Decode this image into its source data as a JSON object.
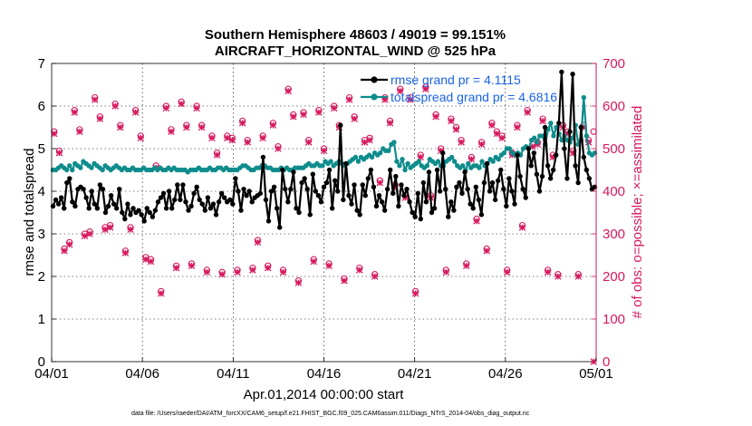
{
  "chart_data": {
    "type": "line",
    "title": "Southern Hemisphere 48603 / 49019 = 99.151%",
    "subtitle": "AIRCRAFT_HORIZONTAL_WIND @ 525 hPa",
    "xlabel": "Apr.01,2014 00:00:00 start",
    "ylabel_left": "rmse and totalspread",
    "ylabel_right": "# of obs: o=possible; ×=assimilated",
    "xlim": [
      0,
      30
    ],
    "ylim_left": [
      0,
      7
    ],
    "ylim_right": [
      0,
      700
    ],
    "x_ticks": [
      0,
      5,
      10,
      15,
      20,
      25,
      30
    ],
    "x_tick_labels": [
      "04/01",
      "04/06",
      "04/11",
      "04/16",
      "04/21",
      "04/26",
      "05/01"
    ],
    "y_ticks_left": [
      "0",
      "1",
      "2",
      "3",
      "4",
      "5",
      "6",
      "7"
    ],
    "y_ticks_right": [
      "0",
      "100",
      "200",
      "300",
      "400",
      "500",
      "600",
      "700"
    ],
    "colors": {
      "rmse": "#000000",
      "spread": "#0f8c8c",
      "obs": "#d6195e",
      "axis_right": "#d6195e",
      "legend_text": "#1a63e6"
    },
    "legend_position": "top-right",
    "series": [
      {
        "name": "rmse grand pr = 4.1115",
        "axis": "left",
        "values": [
          3.65,
          3.8,
          3.7,
          3.85,
          3.6,
          4.2,
          4.3,
          3.75,
          3.65,
          4.05,
          4.1,
          4.05,
          3.85,
          3.6,
          4.0,
          3.7,
          3.6,
          4.15,
          4.05,
          3.5,
          3.65,
          3.9,
          3.7,
          3.6,
          4.05,
          3.5,
          3.35,
          3.7,
          3.45,
          3.6,
          3.5,
          3.55,
          3.45,
          3.3,
          3.6,
          3.5,
          3.4,
          3.55,
          3.75,
          3.85,
          3.95,
          3.6,
          4.0,
          3.6,
          3.8,
          4.15,
          3.8,
          4.15,
          3.75,
          3.55,
          3.65,
          3.95,
          4.1,
          3.8,
          3.7,
          3.55,
          3.85,
          3.6,
          3.7,
          3.45,
          3.75,
          3.95,
          3.85,
          3.75,
          3.8,
          3.7,
          4.3,
          4.0,
          3.55,
          4.05,
          3.9,
          4.0,
          3.75,
          3.85,
          3.9,
          3.95,
          4.8,
          3.8,
          3.3,
          4.0,
          4.1,
          3.6,
          3.15,
          4.5,
          4.05,
          3.75,
          4.05,
          4.45,
          3.6,
          3.5,
          4.2,
          4.3,
          4.05,
          3.45,
          4.4,
          4.0,
          3.9,
          3.75,
          4.1,
          4.2,
          4.5,
          3.6,
          4.25,
          4.0,
          5.55,
          3.8,
          4.65,
          3.9,
          3.7,
          4.15,
          3.55,
          3.45,
          4.15,
          3.9,
          4.3,
          4.5,
          4.1,
          3.65,
          3.9,
          3.75,
          3.55,
          4.05,
          4.5,
          3.95,
          4.35,
          3.65,
          4.15,
          3.9,
          4.05,
          3.75,
          3.5,
          3.4,
          3.95,
          3.35,
          4.2,
          3.75,
          4.45,
          3.5,
          3.6,
          4.5,
          4.0,
          4.9,
          4.05,
          3.4,
          3.75,
          3.55,
          4.1,
          4.2,
          3.95,
          4.45,
          4.05,
          3.7,
          3.6,
          4.1,
          3.8,
          3.45,
          4.2,
          4.65,
          4.0,
          4.2,
          3.8,
          4.25,
          4.5,
          4.05,
          3.65,
          4.3,
          4.0,
          3.7,
          4.85,
          4.35,
          4.05,
          3.85,
          5.0,
          4.6,
          4.9,
          4.4,
          4.0,
          4.35,
          5.5,
          4.6,
          4.3,
          4.5,
          4.85,
          5.6,
          6.8,
          5.0,
          4.3,
          5.4,
          6.75,
          4.6,
          4.2,
          5.5,
          4.8,
          4.5,
          4.3,
          4.05,
          4.1
        ]
      },
      {
        "name": "totalspread grand pr = 4.6816",
        "axis": "left",
        "values": [
          4.5,
          4.5,
          4.55,
          4.6,
          4.55,
          4.5,
          4.6,
          4.5,
          4.65,
          4.6,
          4.55,
          4.7,
          4.65,
          4.6,
          4.55,
          4.65,
          4.6,
          4.55,
          4.5,
          4.6,
          4.55,
          4.5,
          4.55,
          4.6,
          4.55,
          4.5,
          4.55,
          4.5,
          4.5,
          4.55,
          4.5,
          4.5,
          4.5,
          4.55,
          4.5,
          4.5,
          4.5,
          4.55,
          4.5,
          4.55,
          4.5,
          4.5,
          4.55,
          4.5,
          4.55,
          4.5,
          4.5,
          4.5,
          4.5,
          4.45,
          4.5,
          4.5,
          4.5,
          4.55,
          4.5,
          4.5,
          4.5,
          4.55,
          4.5,
          4.5,
          4.55,
          4.55,
          4.5,
          4.55,
          4.5,
          4.5,
          4.5,
          4.5,
          4.55,
          4.6,
          4.6,
          4.55,
          4.5,
          4.5,
          4.55,
          4.55,
          4.6,
          4.6,
          4.55,
          4.55,
          4.5,
          4.5,
          4.5,
          4.55,
          4.5,
          4.55,
          4.5,
          4.5,
          4.55,
          4.55,
          4.55,
          4.55,
          4.6,
          4.65,
          4.6,
          4.6,
          4.65,
          4.6,
          4.6,
          4.7,
          4.65,
          4.7,
          4.6,
          4.65,
          4.7,
          4.65,
          4.6,
          4.65,
          4.7,
          4.75,
          4.8,
          4.7,
          4.8,
          4.75,
          4.8,
          4.85,
          4.8,
          4.9,
          4.85,
          4.9,
          5.0,
          4.95,
          4.95,
          5.1,
          5.15,
          4.7,
          4.6,
          4.75,
          4.5,
          4.65,
          4.55,
          4.6,
          4.65,
          4.7,
          4.6,
          4.55,
          4.6,
          4.75,
          4.7,
          4.65,
          4.7,
          4.6,
          4.6,
          4.7,
          4.75,
          4.8,
          4.7,
          4.6,
          4.55,
          4.6,
          4.5,
          4.65,
          4.55,
          4.6,
          4.6,
          4.55,
          4.7,
          4.6,
          4.65,
          4.75,
          4.7,
          4.8,
          4.75,
          4.85,
          4.9,
          5.0,
          5.0,
          4.9,
          4.85,
          4.9,
          4.85,
          5.0,
          5.05,
          5.0,
          5.2,
          5.25,
          5.15,
          5.3,
          5.3,
          5.1,
          5.45,
          5.6,
          5.3,
          5.5,
          5.35,
          5.2,
          5.3,
          5.2,
          5.15,
          5.25,
          5.55,
          5.1,
          5.2,
          6.2,
          5.3,
          4.9,
          4.85,
          4.9
        ]
      }
    ],
    "obs_possible": [
      540,
      495,
      265,
      280,
      590,
      545,
      300,
      305,
      620,
      575,
      315,
      320,
      605,
      555,
      260,
      315,
      590,
      530,
      245,
      240,
      460,
      165,
      600,
      545,
      225,
      610,
      555,
      230,
      600,
      555,
      215,
      530,
      490,
      210,
      530,
      525,
      215,
      565,
      520,
      220,
      285,
      530,
      225,
      560,
      505,
      215,
      640,
      580,
      190,
      585,
      520,
      240,
      590,
      500,
      230,
      600,
      555,
      195,
      620,
      575,
      220,
      520,
      525,
      205,
      425,
      620,
      565,
      415,
      640,
      390,
      620,
      165,
      485,
      645,
      390,
      580,
      500,
      215,
      570,
      550,
      520,
      230,
      480,
      335,
      515,
      265,
      560,
      540,
      530,
      215,
      490,
      555,
      320,
      590,
      510,
      515,
      570,
      215,
      485,
      205,
      555,
      540,
      495,
      205,
      555,
      520,
      540
    ],
    "obs_assimilated": [
      535,
      490,
      260,
      275,
      585,
      540,
      295,
      300,
      615,
      570,
      310,
      315,
      600,
      550,
      255,
      310,
      585,
      525,
      240,
      235,
      455,
      160,
      595,
      540,
      220,
      605,
      550,
      225,
      595,
      550,
      210,
      525,
      485,
      205,
      525,
      520,
      210,
      560,
      515,
      215,
      280,
      525,
      220,
      555,
      500,
      210,
      635,
      575,
      185,
      580,
      515,
      235,
      585,
      495,
      225,
      595,
      550,
      190,
      615,
      570,
      215,
      515,
      520,
      200,
      420,
      615,
      560,
      410,
      635,
      385,
      615,
      160,
      480,
      640,
      385,
      575,
      495,
      210,
      565,
      545,
      515,
      225,
      475,
      330,
      510,
      260,
      555,
      535,
      525,
      210,
      485,
      550,
      315,
      585,
      505,
      510,
      565,
      210,
      480,
      200,
      550,
      535,
      490,
      200,
      550,
      515,
      0
    ],
    "footer": "data file: /Users/raeder/DAI/ATM_forcXX/CAM6_setup/f.e21.FHIST_BGC.f09_025.CAM6assim.011/Diags_NTrS_2014-04/obs_diag_output.nc"
  }
}
